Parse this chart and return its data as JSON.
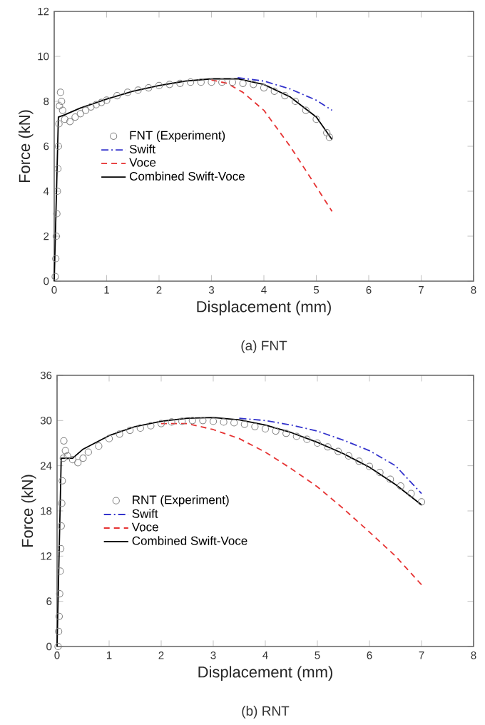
{
  "chart_data": [
    {
      "type": "line",
      "xlabel": "Displacement (mm)",
      "ylabel": "Force (kN)",
      "annotations": [
        "(a)  FNT"
      ],
      "xlim": [
        0,
        8
      ],
      "ylim": [
        0,
        12
      ],
      "xticks": [
        0,
        1,
        2,
        3,
        4,
        5,
        6,
        7,
        8
      ],
      "yticks": [
        0,
        2,
        4,
        6,
        8,
        10,
        12
      ],
      "grid": false,
      "legend": "left",
      "series": [
        {
          "name": "FNT (Experiment)",
          "type": "scatter",
          "marker": "circle",
          "color": "#808080",
          "x": [
            0.02,
            0.03,
            0.04,
            0.05,
            0.06,
            0.07,
            0.08,
            0.09,
            0.1,
            0.12,
            0.14,
            0.16,
            0.2,
            0.3,
            0.4,
            0.5,
            0.6,
            0.7,
            0.8,
            0.9,
            1.0,
            1.2,
            1.4,
            1.6,
            1.8,
            2.0,
            2.2,
            2.4,
            2.6,
            2.8,
            3.0,
            3.2,
            3.4,
            3.6,
            3.8,
            4.0,
            4.2,
            4.4,
            4.6,
            4.8,
            5.0,
            5.2,
            5.25
          ],
          "values": [
            0.2,
            1,
            2,
            3,
            4,
            5,
            6,
            7,
            7.8,
            8.4,
            8.0,
            7.6,
            7.2,
            7.1,
            7.3,
            7.45,
            7.6,
            7.75,
            7.85,
            7.95,
            8.05,
            8.25,
            8.4,
            8.5,
            8.6,
            8.7,
            8.75,
            8.8,
            8.85,
            8.85,
            8.85,
            8.85,
            8.85,
            8.8,
            8.75,
            8.6,
            8.45,
            8.25,
            8.0,
            7.6,
            7.2,
            6.6,
            6.4
          ]
        },
        {
          "name": "Swift",
          "type": "line",
          "line_style": "dashdot",
          "color": "#3333cc",
          "x": [
            3.5,
            4,
            4.5,
            5,
            5.3
          ],
          "values": [
            9.05,
            8.9,
            8.55,
            8.05,
            7.6
          ]
        },
        {
          "name": "Voce",
          "type": "line",
          "line_style": "dashed",
          "color": "#e63333",
          "x": [
            3,
            3.3,
            3.6,
            4,
            4.5,
            5,
            5.3
          ],
          "values": [
            8.95,
            8.8,
            8.4,
            7.6,
            6.0,
            4.2,
            3.1
          ]
        },
        {
          "name": "Combined Swift-Voce",
          "type": "line",
          "line_style": "solid",
          "color": "#000000",
          "x": [
            0,
            0.08,
            0.2,
            0.5,
            1,
            1.5,
            2,
            2.5,
            3,
            3.5,
            4,
            4.5,
            5,
            5.3
          ],
          "values": [
            0,
            7.3,
            7.4,
            7.7,
            8.1,
            8.45,
            8.7,
            8.9,
            9.0,
            9.0,
            8.75,
            8.2,
            7.3,
            6.3
          ]
        }
      ]
    },
    {
      "type": "line",
      "xlabel": "Displacement (mm)",
      "ylabel": "Force (kN)",
      "annotations": [
        "(b)  RNT"
      ],
      "xlim": [
        0,
        8
      ],
      "ylim": [
        0,
        36
      ],
      "xticks": [
        0,
        1,
        2,
        3,
        4,
        5,
        6,
        7,
        8
      ],
      "yticks": [
        0,
        6,
        12,
        18,
        24,
        30,
        36
      ],
      "grid": false,
      "legend": "left",
      "series": [
        {
          "name": "RNT (Experiment)",
          "type": "scatter",
          "marker": "circle",
          "color": "#808080",
          "x": [
            0.02,
            0.03,
            0.04,
            0.05,
            0.06,
            0.07,
            0.08,
            0.09,
            0.1,
            0.12,
            0.13,
            0.16,
            0.2,
            0.3,
            0.4,
            0.5,
            0.6,
            0.8,
            1.0,
            1.2,
            1.4,
            1.6,
            1.8,
            2.0,
            2.2,
            2.4,
            2.6,
            2.8,
            3.0,
            3.2,
            3.4,
            3.6,
            3.8,
            4.0,
            4.2,
            4.4,
            4.6,
            4.8,
            5.0,
            5.2,
            5.4,
            5.6,
            5.8,
            6.0,
            6.2,
            6.4,
            6.6,
            6.8,
            7.0
          ],
          "values": [
            0,
            2,
            4,
            7,
            10,
            13,
            16,
            19,
            22,
            25,
            27.3,
            26,
            25.3,
            24.8,
            24.4,
            25,
            25.8,
            26.6,
            27.6,
            28.2,
            28.7,
            29.0,
            29.3,
            29.6,
            29.8,
            29.9,
            30.0,
            30.0,
            29.9,
            29.8,
            29.7,
            29.5,
            29.2,
            28.9,
            28.6,
            28.3,
            27.9,
            27.5,
            27.0,
            26.5,
            25.9,
            25.3,
            24.6,
            23.9,
            23.1,
            22.2,
            21.3,
            20.3,
            19.2
          ]
        },
        {
          "name": "Swift",
          "type": "line",
          "line_style": "dashdot",
          "color": "#3333cc",
          "x": [
            3.5,
            4,
            4.5,
            5,
            5.5,
            6,
            6.5,
            7
          ],
          "values": [
            30.3,
            30,
            29.4,
            28.6,
            27.4,
            26,
            24,
            20.3
          ]
        },
        {
          "name": "Voce",
          "type": "line",
          "line_style": "dashed",
          "color": "#e63333",
          "x": [
            2,
            2.5,
            3,
            3.5,
            4,
            4.5,
            5,
            5.5,
            6,
            6.5,
            7
          ],
          "values": [
            29.6,
            29.6,
            28.8,
            27.6,
            25.8,
            23.6,
            21.2,
            18.3,
            15.2,
            12,
            8.2
          ]
        },
        {
          "name": "Combined Swift-Voce",
          "type": "line",
          "line_style": "solid",
          "color": "#000000",
          "x": [
            0,
            0.08,
            0.3,
            0.5,
            1,
            1.5,
            2,
            2.5,
            3,
            3.5,
            4,
            4.5,
            5,
            5.5,
            6,
            6.5,
            7
          ],
          "values": [
            0,
            25,
            25,
            26.2,
            28,
            29.2,
            29.9,
            30.3,
            30.4,
            30.1,
            29.4,
            28.4,
            27.1,
            25.6,
            23.8,
            21.5,
            18.8
          ]
        }
      ]
    }
  ]
}
